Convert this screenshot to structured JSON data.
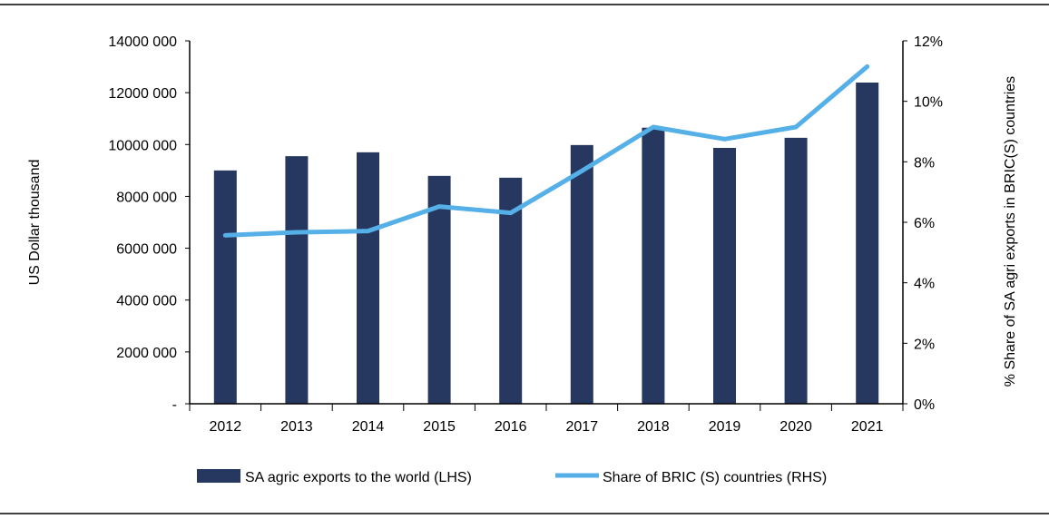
{
  "chart_data": {
    "type": "bar+line",
    "categories": [
      "2012",
      "2013",
      "2014",
      "2015",
      "2016",
      "2017",
      "2018",
      "2019",
      "2020",
      "2021"
    ],
    "series": [
      {
        "name": "SA agric exports to the world (LHS)",
        "type": "bar",
        "axis": "left",
        "color": "#263760",
        "values": [
          9000000,
          9550000,
          9700000,
          8790000,
          8720000,
          9980000,
          10650000,
          9870000,
          10260000,
          12390000
        ]
      },
      {
        "name": "Share of BRIC (S) countries (RHS)",
        "type": "line",
        "axis": "right",
        "color": "#56b0e8",
        "values": [
          5.57,
          5.67,
          5.71,
          6.52,
          6.31,
          7.7,
          9.15,
          8.75,
          9.15,
          11.15
        ]
      }
    ],
    "ylabel": "US Dollar thousand",
    "y2label": "% Share of SA agri exports in BRIC(S) countries",
    "ylim": [
      0,
      14000000
    ],
    "y2lim": [
      0,
      12
    ],
    "yticks": [
      "-",
      "2000 000",
      "4000 000",
      "6000 000",
      "8000 000",
      "10000 000",
      "12000 000",
      "14000 000"
    ],
    "y2ticks": [
      "0%",
      "2%",
      "4%",
      "6%",
      "8%",
      "10%",
      "12%"
    ],
    "grid": false,
    "legend_placement": "bottom"
  }
}
